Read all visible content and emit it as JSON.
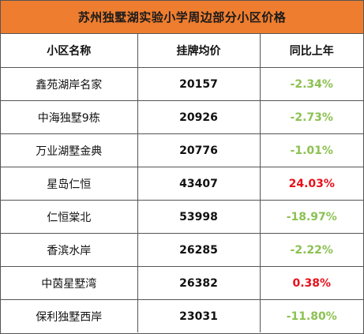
{
  "title": "苏州独墅湖实验小学周边部分小区价格",
  "headers": {
    "name": "小区名称",
    "price": "挂牌均价",
    "change": "同比上年"
  },
  "colors": {
    "title_bg": "#ee7d2f",
    "negative": "#8cc152",
    "positive": "#e8101b",
    "border": "#555555"
  },
  "rows": [
    {
      "name": "鑫苑湖岸名家",
      "price": "20157",
      "change": "-2.34%",
      "direction": "down"
    },
    {
      "name": "中海独墅9栋",
      "price": "20926",
      "change": "-2.73%",
      "direction": "down"
    },
    {
      "name": "万业湖墅金典",
      "price": "20776",
      "change": "-1.01%",
      "direction": "down"
    },
    {
      "name": "星岛仁恒",
      "price": "43407",
      "change": "24.03%",
      "direction": "up"
    },
    {
      "name": "仁恒棠北",
      "price": "53998",
      "change": "-18.97%",
      "direction": "down"
    },
    {
      "name": "香滨水岸",
      "price": "26285",
      "change": "-2.22%",
      "direction": "down"
    },
    {
      "name": "中茵星墅湾",
      "price": "26382",
      "change": "0.38%",
      "direction": "up"
    },
    {
      "name": "保利独墅西岸",
      "price": "23031",
      "change": "-11.80%",
      "direction": "down"
    }
  ]
}
